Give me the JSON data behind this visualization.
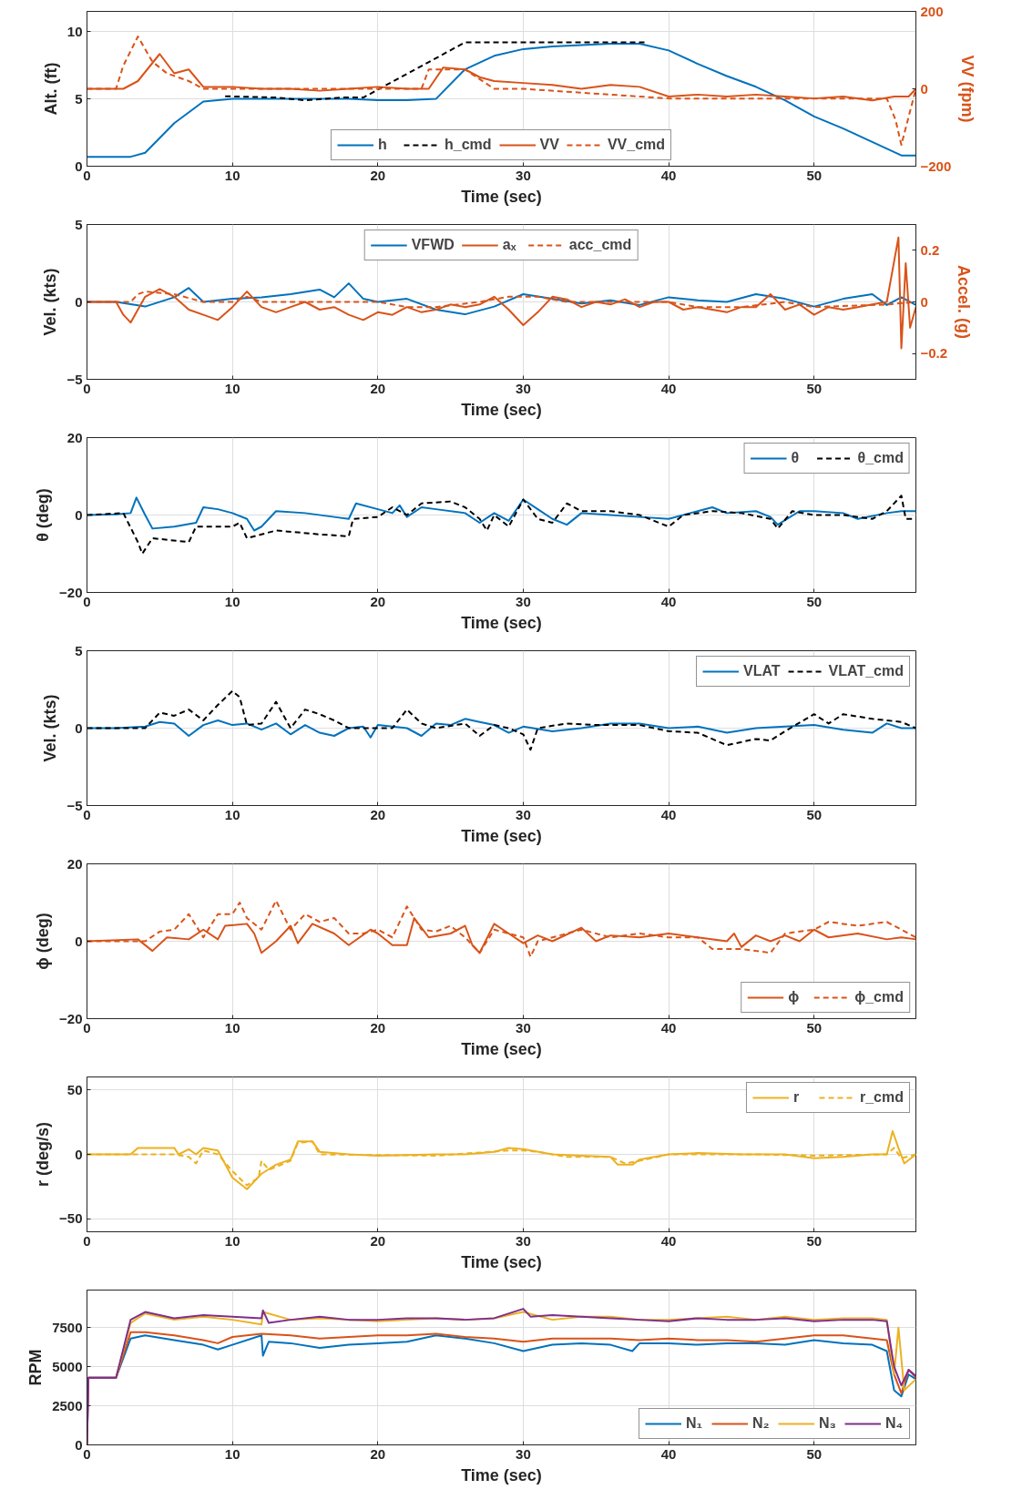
{
  "chart_data": [
    {
      "type": "line",
      "xlabel": "Time (sec)",
      "ylabel": "Alt. (ft)",
      "y2label": "VV (fpm)",
      "xlim": [
        0,
        57
      ],
      "xticks": [
        0,
        10,
        20,
        30,
        40,
        50
      ],
      "ylim": [
        0,
        11.5
      ],
      "yticks": [
        0,
        5,
        10
      ],
      "y2lim": [
        -200,
        200
      ],
      "y2ticks": [
        -200,
        0,
        200
      ],
      "grid": true,
      "legend": "bottom",
      "series": [
        {
          "name": "h",
          "color": "#0072bd",
          "line_style": "solid",
          "x": [
            0,
            2,
            3,
            4,
            6,
            8,
            10,
            12,
            14,
            16,
            18,
            20,
            22,
            24,
            26,
            28,
            30,
            32,
            34,
            36,
            38,
            40,
            42,
            44,
            46,
            48,
            50,
            52,
            54,
            56,
            57
          ],
          "values": [
            0.7,
            0.7,
            0.7,
            1.0,
            3.2,
            4.8,
            5.0,
            5.0,
            5.0,
            5.0,
            5.0,
            4.9,
            4.9,
            5.0,
            7.2,
            8.2,
            8.7,
            8.9,
            9.0,
            9.1,
            9.1,
            8.6,
            7.6,
            6.7,
            5.9,
            4.9,
            3.7,
            2.8,
            1.8,
            0.8,
            0.8
          ]
        },
        {
          "name": "h_cmd",
          "color": "#000000",
          "line_style": "dashed",
          "x": [
            9.5,
            13,
            15,
            17.5,
            19,
            26,
            38.5
          ],
          "values": [
            5.2,
            5.1,
            4.9,
            5.1,
            5.1,
            9.2,
            9.2
          ]
        },
        {
          "name": "VV",
          "color": "#d95319",
          "line_style": "solid",
          "axis": "y2",
          "x": [
            0,
            2.5,
            3.5,
            5,
            6,
            7,
            8,
            10,
            12,
            14,
            16,
            18,
            20,
            22,
            23.5,
            24.5,
            26,
            27,
            28,
            30,
            32,
            34,
            36,
            38,
            40,
            42,
            44,
            46,
            48,
            50,
            52,
            54,
            55.5,
            56.5,
            57
          ],
          "values": [
            0,
            0,
            20,
            90,
            40,
            50,
            5,
            5,
            0,
            0,
            -5,
            0,
            5,
            0,
            0,
            55,
            50,
            30,
            20,
            15,
            10,
            0,
            10,
            5,
            -20,
            -15,
            -20,
            -15,
            -20,
            -25,
            -20,
            -30,
            -20,
            -20,
            0
          ]
        },
        {
          "name": "VV_cmd",
          "color": "#d95319",
          "line_style": "dashed",
          "axis": "y2",
          "x": [
            0,
            2,
            2.5,
            3.5,
            4.5,
            5.5,
            7,
            8,
            10,
            20,
            23,
            23.5,
            24,
            26,
            28,
            30,
            40,
            55,
            55.6,
            56,
            57
          ],
          "values": [
            0,
            0,
            60,
            135,
            70,
            40,
            20,
            0,
            0,
            0,
            0,
            50,
            50,
            50,
            0,
            0,
            -25,
            -25,
            -80,
            -145,
            0
          ]
        }
      ]
    },
    {
      "type": "line",
      "xlabel": "Time (sec)",
      "ylabel": "Vel. (kts)",
      "y2label": "Accel. (g)",
      "xlim": [
        0,
        57
      ],
      "xticks": [
        0,
        10,
        20,
        30,
        40,
        50
      ],
      "ylim": [
        -5,
        5
      ],
      "yticks": [
        -5,
        0,
        5
      ],
      "y2lim": [
        -0.3,
        0.3
      ],
      "y2ticks": [
        -0.2,
        0,
        0.2
      ],
      "grid": true,
      "legend": "top",
      "series": [
        {
          "name": "VFWD",
          "color": "#0072bd",
          "line_style": "solid",
          "x": [
            0,
            2,
            4,
            6,
            7,
            8,
            10,
            12,
            14,
            16,
            17,
            18,
            19,
            20,
            22,
            24,
            26,
            28,
            30,
            32,
            34,
            36,
            38,
            40,
            42,
            44,
            46,
            48,
            50,
            52,
            54,
            55,
            56,
            57
          ],
          "values": [
            0,
            0,
            -0.3,
            0.3,
            0.9,
            0,
            0.2,
            0.3,
            0.5,
            0.8,
            0.3,
            1.2,
            0.2,
            0,
            0.2,
            -0.5,
            -0.8,
            -0.3,
            0.5,
            0.2,
            -0.1,
            0.1,
            -0.2,
            0.3,
            0.1,
            0,
            0.5,
            0.2,
            -0.3,
            0.2,
            0.5,
            -0.2,
            0.3,
            -0.2
          ]
        },
        {
          "name": "aₓ",
          "color": "#d95319",
          "line_style": "solid",
          "axis": "y2",
          "x": [
            0,
            2,
            2.5,
            3,
            4,
            5,
            6,
            7,
            8,
            9,
            10,
            11,
            12,
            13,
            14,
            15,
            16,
            17,
            18,
            19,
            20,
            21,
            22,
            23,
            24,
            25,
            26,
            27,
            28,
            29,
            30,
            31,
            32,
            33,
            34,
            35,
            36,
            37,
            38,
            39,
            40,
            41,
            42,
            43,
            44,
            45,
            46,
            47,
            48,
            49,
            50,
            51,
            52,
            53,
            54,
            55,
            55.8,
            56,
            56.3,
            56.6,
            57
          ],
          "values": [
            0,
            0,
            -0.05,
            -0.08,
            0.02,
            0.05,
            0.02,
            -0.03,
            -0.05,
            -0.07,
            -0.02,
            0.04,
            -0.02,
            -0.04,
            -0.02,
            0,
            -0.03,
            -0.02,
            -0.05,
            -0.07,
            -0.04,
            -0.05,
            -0.02,
            -0.04,
            -0.03,
            -0.01,
            -0.02,
            -0.01,
            0.02,
            -0.03,
            -0.09,
            -0.04,
            0.02,
            0.01,
            -0.02,
            0,
            -0.01,
            0.01,
            -0.02,
            0,
            0,
            -0.03,
            -0.02,
            -0.03,
            -0.04,
            -0.02,
            -0.02,
            0.03,
            -0.03,
            -0.01,
            -0.05,
            -0.02,
            -0.03,
            -0.02,
            -0.01,
            0,
            0.25,
            -0.18,
            0.15,
            -0.1,
            -0.02
          ]
        },
        {
          "name": "acc_cmd",
          "color": "#d95319",
          "line_style": "dashed",
          "axis": "y2",
          "x": [
            0,
            3,
            3.5,
            4,
            6,
            8,
            10,
            11,
            12,
            20,
            22,
            24,
            27,
            29,
            31,
            33,
            40,
            42,
            45,
            48,
            50,
            55,
            57
          ],
          "values": [
            0,
            0,
            0.03,
            0.04,
            0.03,
            0,
            0,
            0.02,
            0,
            0,
            -0.02,
            -0.02,
            0,
            0.02,
            0.02,
            0,
            0,
            -0.02,
            -0.02,
            0,
            -0.02,
            -0.01,
            0
          ]
        }
      ]
    },
    {
      "type": "line",
      "xlabel": "Time (sec)",
      "ylabel": "θ (deg)",
      "xlim": [
        0,
        57
      ],
      "xticks": [
        0,
        10,
        20,
        30,
        40,
        50
      ],
      "ylim": [
        -20,
        20
      ],
      "yticks": [
        -20,
        0,
        20
      ],
      "grid": true,
      "legend": "top right",
      "series": [
        {
          "name": "θ",
          "color": "#0072bd",
          "line_style": "solid",
          "x": [
            0,
            2,
            3,
            3.4,
            4,
            4.5,
            6,
            7.5,
            8,
            9,
            10,
            11,
            11.5,
            12,
            13,
            15,
            17,
            18,
            18.5,
            20,
            21,
            21.5,
            22,
            23,
            24,
            26,
            27,
            28,
            29,
            30,
            31,
            32,
            33,
            34,
            36,
            38,
            40,
            42,
            43,
            44,
            46,
            47,
            47.5,
            49,
            50,
            52,
            53,
            55,
            56,
            57
          ],
          "values": [
            0,
            0.2,
            0.5,
            4.5,
            0,
            -3.5,
            -3,
            -2,
            2,
            1.5,
            0.5,
            -1,
            -4,
            -3,
            1,
            0.5,
            -0.5,
            -1,
            3,
            1.5,
            0.5,
            2.5,
            -0.5,
            2,
            1.5,
            0.5,
            -2,
            0.5,
            -1.5,
            4,
            1.5,
            -1,
            -2.5,
            0.5,
            0,
            -0.5,
            -1,
            1,
            2,
            0.5,
            1,
            -0.5,
            -2.5,
            1,
            1,
            0.5,
            -1,
            0.5,
            1,
            1
          ]
        },
        {
          "name": "θ_cmd",
          "color": "#000000",
          "line_style": "dashed",
          "x": [
            0,
            2.5,
            3.5,
            3.8,
            4.5,
            7,
            7.5,
            10,
            10.5,
            11,
            12,
            13,
            16,
            18,
            18.3,
            20,
            21,
            22,
            23,
            25,
            26,
            27,
            27.5,
            28,
            29,
            30,
            31,
            32,
            33,
            34,
            36,
            38,
            40,
            41,
            43,
            45,
            47,
            47.5,
            48.5,
            50,
            52,
            54,
            55,
            56,
            56.3,
            57
          ],
          "values": [
            0,
            0.5,
            -7,
            -10,
            -6,
            -7,
            -3,
            -3,
            -2,
            -6,
            -5,
            -4,
            -5,
            -5.5,
            -1,
            -0.5,
            2,
            0,
            3,
            3.5,
            2,
            -1,
            -4,
            0,
            -3,
            4,
            -1,
            -2,
            3,
            1,
            1,
            0,
            -3,
            0,
            1,
            0.5,
            -1,
            -3.5,
            1,
            0,
            0,
            -1,
            1,
            5,
            -1,
            -1
          ]
        }
      ]
    },
    {
      "type": "line",
      "xlabel": "Time (sec)",
      "ylabel": "Vel. (kts)",
      "xlim": [
        0,
        57
      ],
      "xticks": [
        0,
        10,
        20,
        30,
        40,
        50
      ],
      "ylim": [
        -5,
        5
      ],
      "yticks": [
        -5,
        0,
        5
      ],
      "grid": true,
      "legend": "top right",
      "series": [
        {
          "name": "VLAT",
          "color": "#0072bd",
          "line_style": "solid",
          "x": [
            0,
            2,
            4,
            5,
            6,
            7,
            8,
            9,
            10,
            11,
            12,
            13,
            14,
            15,
            16,
            17,
            18,
            19,
            19.5,
            20,
            22,
            23,
            24,
            25,
            26,
            27,
            28,
            29,
            30,
            32,
            34,
            36,
            38,
            40,
            42,
            44,
            46,
            48,
            50,
            52,
            54,
            55,
            56,
            57
          ],
          "values": [
            0,
            0,
            0.1,
            0.4,
            0.3,
            -0.5,
            0.2,
            0.5,
            0.2,
            0.3,
            -0.1,
            0.3,
            -0.4,
            0.2,
            -0.3,
            -0.5,
            0,
            0.1,
            -0.6,
            0.2,
            0,
            -0.5,
            0.3,
            0.2,
            0.6,
            0.4,
            0.2,
            -0.3,
            0.1,
            -0.2,
            0,
            0.3,
            0.3,
            0,
            0.1,
            -0.3,
            0,
            0.1,
            0.2,
            -0.1,
            -0.3,
            0.3,
            0,
            0
          ]
        },
        {
          "name": "VLAT_cmd",
          "color": "#000000",
          "line_style": "dashed",
          "x": [
            0,
            4,
            5,
            6,
            7,
            8,
            9,
            10,
            10.5,
            11,
            12,
            13,
            14,
            15,
            16,
            17,
            18,
            21,
            22,
            23,
            24,
            26,
            27,
            28,
            29,
            30,
            30.5,
            31,
            33,
            35,
            38,
            40,
            42,
            44,
            46,
            47,
            48,
            50,
            51,
            52,
            54,
            56,
            57
          ],
          "values": [
            0,
            0,
            1,
            0.8,
            1.2,
            0.5,
            1.5,
            2.4,
            2,
            0.2,
            0.3,
            1.7,
            0,
            1.2,
            0.9,
            0.5,
            0,
            0,
            1.2,
            0.3,
            0,
            0.3,
            -0.5,
            0.2,
            0,
            -0.4,
            -1.4,
            0,
            0.3,
            0.2,
            0.2,
            -0.2,
            -0.3,
            -1.1,
            -0.7,
            -0.8,
            -0.2,
            0.9,
            0.3,
            0.9,
            0.6,
            0.4,
            0
          ]
        }
      ]
    },
    {
      "type": "line",
      "xlabel": "Time (sec)",
      "ylabel": "ϕ (deg)",
      "xlim": [
        0,
        57
      ],
      "xticks": [
        0,
        10,
        20,
        30,
        40,
        50
      ],
      "ylim": [
        -20,
        20
      ],
      "yticks": [
        -20,
        0,
        20
      ],
      "grid": true,
      "legend": "bottom right",
      "series": [
        {
          "name": "ϕ",
          "color": "#d95319",
          "line_style": "solid",
          "x": [
            0,
            3.5,
            4.5,
            5.5,
            7,
            8,
            9,
            9.5,
            11,
            11.5,
            12,
            13,
            14,
            14.5,
            15.5,
            17,
            18,
            19.5,
            20,
            21,
            22,
            22.5,
            23.5,
            25,
            26,
            26.5,
            27,
            28,
            29,
            30,
            31,
            32,
            34,
            35,
            36,
            38,
            40,
            42,
            44,
            44.5,
            45,
            46,
            47,
            48,
            49,
            50,
            51,
            53,
            55,
            56,
            57
          ],
          "values": [
            0,
            0.5,
            -2.5,
            1,
            0.5,
            3,
            0.5,
            4,
            4.5,
            2,
            -3,
            0,
            4,
            -0.5,
            4.5,
            2,
            -1,
            3,
            2,
            -1,
            -1,
            6,
            1,
            2,
            4,
            -1,
            -3,
            4.5,
            2,
            -0.5,
            1.5,
            0,
            3.5,
            0,
            1.5,
            1,
            2,
            1,
            0,
            2,
            -1.5,
            1.5,
            0,
            1.5,
            0,
            3,
            1,
            2,
            0.5,
            1,
            0.5
          ]
        },
        {
          "name": "ϕ_cmd",
          "color": "#d95319",
          "line_style": "dashed",
          "x": [
            0,
            4,
            5,
            6,
            7,
            8,
            9,
            10,
            10.5,
            11,
            12,
            13,
            14,
            15,
            16,
            17,
            18,
            19,
            20,
            21,
            22,
            23,
            24,
            25,
            26,
            27,
            28,
            29,
            30,
            30.5,
            31,
            32,
            34,
            36,
            38,
            40,
            42,
            43,
            45,
            46,
            47,
            48,
            50,
            51,
            53,
            55,
            56,
            57
          ],
          "values": [
            0,
            0,
            2.5,
            3,
            7,
            1,
            7,
            7,
            10,
            6,
            3,
            10.5,
            3,
            7,
            5,
            6,
            2,
            2,
            3,
            1,
            9,
            3,
            2.5,
            4,
            1,
            -3,
            3,
            2,
            1,
            -4,
            0,
            1,
            3,
            1,
            2,
            1,
            1,
            -2,
            -2,
            -2.5,
            -3,
            2,
            3,
            5,
            4,
            5,
            3,
            1
          ]
        }
      ]
    },
    {
      "type": "line",
      "xlabel": "Time (sec)",
      "ylabel": "r (deg/s)",
      "xlim": [
        0,
        57
      ],
      "xticks": [
        0,
        10,
        20,
        30,
        40,
        50
      ],
      "ylim": [
        -60,
        60
      ],
      "yticks": [
        -50,
        0,
        50
      ],
      "grid": true,
      "legend": "top right",
      "series": [
        {
          "name": "r",
          "color": "#edb120",
          "line_style": "solid",
          "x": [
            0,
            3,
            3.5,
            6,
            6.3,
            7,
            7.5,
            8,
            9,
            10,
            11,
            12,
            13,
            14,
            14.5,
            15.5,
            16,
            18,
            20,
            24,
            26,
            28,
            29,
            30,
            32,
            34,
            36,
            36.5,
            37.5,
            38,
            40,
            42,
            45,
            48,
            50,
            52,
            54,
            55,
            55.4,
            55.8,
            56.2,
            57
          ],
          "values": [
            0,
            0,
            5,
            5,
            0,
            4,
            0,
            5,
            3,
            -18,
            -27,
            -15,
            -8,
            -4,
            10,
            10,
            2,
            0,
            -1,
            0,
            0,
            2,
            5,
            4,
            0,
            -1,
            -2,
            -8,
            -8,
            -4,
            0,
            1,
            0,
            0,
            -3,
            -2,
            0,
            0,
            18,
            5,
            -7,
            0
          ]
        },
        {
          "name": "r_cmd",
          "color": "#edb120",
          "line_style": "dashed",
          "x": [
            0,
            6,
            7,
            7.5,
            8,
            9,
            10,
            11,
            11.8,
            12,
            12.5,
            14,
            14.5,
            15.5,
            16,
            24,
            29,
            30,
            31,
            33,
            36,
            37,
            38,
            40,
            46,
            50,
            55,
            55.5,
            56,
            57
          ],
          "values": [
            0,
            0,
            -2,
            -7,
            3,
            0,
            -13,
            -24,
            -18,
            -5,
            -12,
            -5,
            9,
            10,
            0,
            -1,
            3,
            3,
            2,
            -2,
            -2,
            -7,
            -5,
            0,
            0,
            -1,
            0,
            5,
            -3,
            0
          ]
        }
      ]
    },
    {
      "type": "line",
      "xlabel": "Time (sec)",
      "ylabel": "RPM",
      "xlim": [
        0,
        57
      ],
      "xticks": [
        0,
        10,
        20,
        30,
        40,
        50
      ],
      "ylim": [
        0,
        9900
      ],
      "yticks": [
        0,
        2500,
        5000,
        7500
      ],
      "grid": true,
      "legend": "bottom right",
      "series": [
        {
          "name": "N₁",
          "color": "#0072bd",
          "line_style": "solid",
          "x": [
            0,
            0.1,
            2,
            3,
            4,
            6,
            8,
            9,
            10,
            12,
            12.1,
            12.5,
            14,
            16,
            18,
            20,
            22,
            24,
            26,
            28,
            30,
            32,
            34,
            36,
            37.5,
            38,
            40,
            42,
            44,
            46,
            48,
            50,
            52,
            54,
            55,
            55.5,
            56,
            56.5,
            57
          ],
          "values": [
            0,
            4300,
            4300,
            6800,
            7000,
            6700,
            6400,
            6100,
            6400,
            7000,
            5700,
            6600,
            6500,
            6200,
            6400,
            6500,
            6600,
            7000,
            6800,
            6500,
            6000,
            6400,
            6500,
            6400,
            6000,
            6500,
            6500,
            6400,
            6500,
            6500,
            6400,
            6700,
            6500,
            6400,
            6000,
            3500,
            3100,
            4500,
            4200
          ]
        },
        {
          "name": "N₂",
          "color": "#d95319",
          "line_style": "solid",
          "x": [
            0,
            0.1,
            2,
            3,
            4,
            6,
            8,
            9,
            10,
            12,
            14,
            16,
            18,
            20,
            22,
            24,
            26,
            28,
            30,
            32,
            34,
            36,
            38,
            40,
            42,
            44,
            46,
            48,
            50,
            52,
            54,
            55,
            55.5,
            56,
            56.5,
            57
          ],
          "values": [
            0,
            4300,
            4300,
            7200,
            7200,
            7000,
            6700,
            6500,
            6900,
            7100,
            7000,
            6800,
            6900,
            7000,
            7000,
            7100,
            6900,
            6800,
            6600,
            6800,
            6800,
            6800,
            6700,
            6800,
            6700,
            6700,
            6600,
            6800,
            7000,
            7000,
            6800,
            6700,
            4500,
            3300,
            4800,
            4300
          ]
        },
        {
          "name": "N₃",
          "color": "#edb120",
          "line_style": "solid",
          "x": [
            2,
            3,
            4,
            6,
            8,
            10,
            12,
            12.1,
            14,
            16,
            18,
            20,
            22,
            24,
            26,
            28,
            30,
            32,
            34,
            36,
            38,
            40,
            42,
            44,
            46,
            48,
            50,
            52,
            54,
            55,
            55.5,
            55.8,
            56.2,
            57
          ],
          "values": [
            4300,
            7800,
            8400,
            8000,
            8200,
            8000,
            7700,
            8500,
            8000,
            8100,
            8000,
            7900,
            8000,
            8100,
            8000,
            8100,
            8500,
            8000,
            8200,
            8200,
            8000,
            8000,
            8100,
            8200,
            8000,
            8200,
            8000,
            8100,
            8100,
            8000,
            4500,
            7500,
            3500,
            4200
          ]
        },
        {
          "name": "N₄",
          "color": "#7e2f8e",
          "line_style": "solid",
          "x": [
            0,
            0.1,
            2,
            3,
            4,
            6,
            8,
            10,
            12,
            12.1,
            12.5,
            14,
            16,
            18,
            20,
            22,
            24,
            26,
            28,
            30,
            30.5,
            32,
            34,
            36,
            38,
            40,
            42,
            44,
            46,
            48,
            50,
            52,
            54,
            55,
            55.5,
            56,
            56.5,
            57
          ],
          "values": [
            0,
            4300,
            4300,
            8000,
            8500,
            8100,
            8300,
            8200,
            8100,
            8600,
            7800,
            8000,
            8200,
            8000,
            8000,
            8100,
            8100,
            8000,
            8100,
            8700,
            8200,
            8300,
            8200,
            8100,
            8000,
            7900,
            8100,
            8000,
            8000,
            8100,
            7900,
            8000,
            8000,
            7900,
            5000,
            3800,
            4800,
            4400
          ]
        }
      ]
    }
  ]
}
